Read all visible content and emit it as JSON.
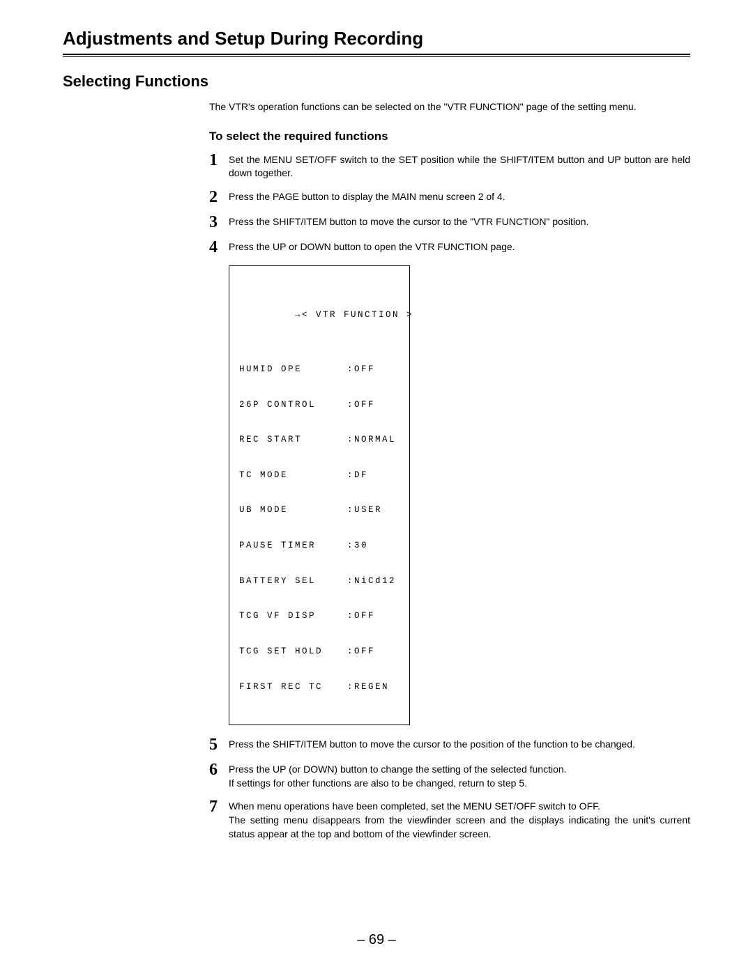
{
  "page": {
    "main_heading": "Adjustments and Setup During Recording",
    "section_heading": "Selecting Functions",
    "intro": "The VTR's operation functions can be selected on the \"VTR FUNCTION\" page of the setting menu.",
    "sub_heading": "To select the required functions",
    "page_number": "– 69 –"
  },
  "steps": [
    {
      "num": "1",
      "text": "Set the MENU SET/OFF switch to the SET position while the SHIFT/ITEM button and UP button are held down together."
    },
    {
      "num": "2",
      "text": "Press the PAGE button to display the MAIN menu screen 2 of 4."
    },
    {
      "num": "3",
      "text": "Press the SHIFT/ITEM button to move the cursor to the \"VTR FUNCTION\" position."
    },
    {
      "num": "4",
      "text": "Press the UP or DOWN button to open the VTR FUNCTION page."
    },
    {
      "num": "5",
      "text": "Press the SHIFT/ITEM button to move the cursor to the position of the function to be changed."
    },
    {
      "num": "6",
      "text": "Press the UP (or DOWN) button to change the setting of the selected function.\nIf settings for other functions are also to be changed, return to step 5."
    },
    {
      "num": "7",
      "text": "When menu operations have been completed, set the MENU SET/OFF switch to OFF.\nThe setting menu disappears from the viewfinder screen and the displays indicating the unit's current status appear at the top and bottom of the viewfinder screen."
    }
  ],
  "menu": {
    "arrow": "→",
    "title": "< VTR FUNCTION >",
    "rows": [
      {
        "label": "HUMID OPE",
        "value": "OFF"
      },
      {
        "label": "26P CONTROL",
        "value": "OFF"
      },
      {
        "label": "REC START",
        "value": "NORMAL"
      },
      {
        "label": "TC MODE",
        "value": "DF"
      },
      {
        "label": "UB MODE",
        "value": "USER"
      },
      {
        "label": "PAUSE TIMER",
        "value": "30"
      },
      {
        "label": "BATTERY SEL",
        "value": "NiCd12"
      },
      {
        "label": "TCG VF DISP",
        "value": "OFF"
      },
      {
        "label": "TCG SET HOLD",
        "value": "OFF"
      },
      {
        "label": "FIRST REC TC",
        "value": "REGEN"
      }
    ]
  }
}
